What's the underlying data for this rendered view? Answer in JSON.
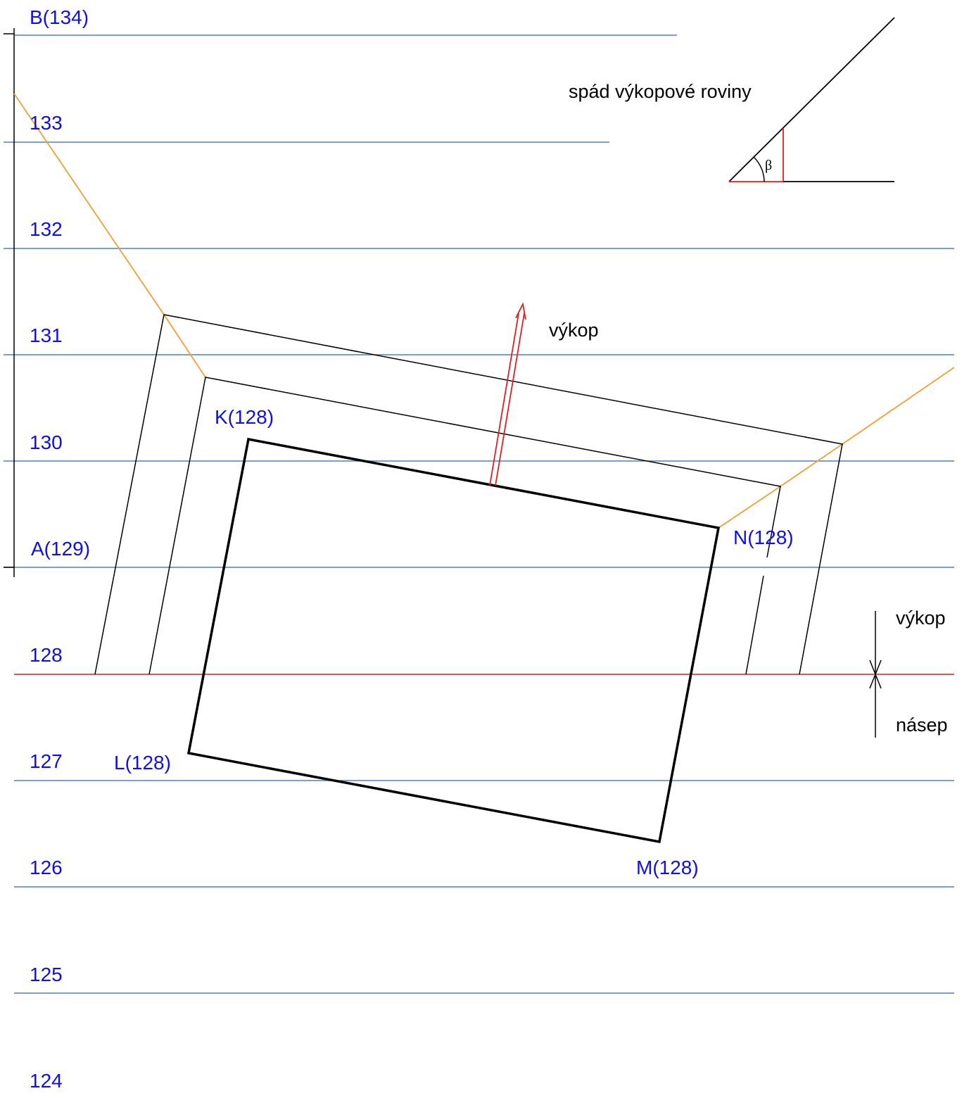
{
  "contours": [
    {
      "label": "B(134)"
    },
    {
      "label": "133"
    },
    {
      "label": "132"
    },
    {
      "label": "131"
    },
    {
      "label": "130"
    },
    {
      "label": "A(129)"
    },
    {
      "label": "128"
    },
    {
      "label": "127"
    },
    {
      "label": "126"
    },
    {
      "label": "125"
    },
    {
      "label": "124"
    }
  ],
  "points": [
    {
      "label": "K(128)"
    },
    {
      "label": "L(128)"
    },
    {
      "label": "M(128)"
    },
    {
      "label": "N(128)"
    }
  ],
  "annotations": {
    "arrow_label": "výkop",
    "cut_label": "výkop",
    "fill_label": "násep",
    "slope_title": "spád výkopové roviny",
    "angle": "β"
  }
}
